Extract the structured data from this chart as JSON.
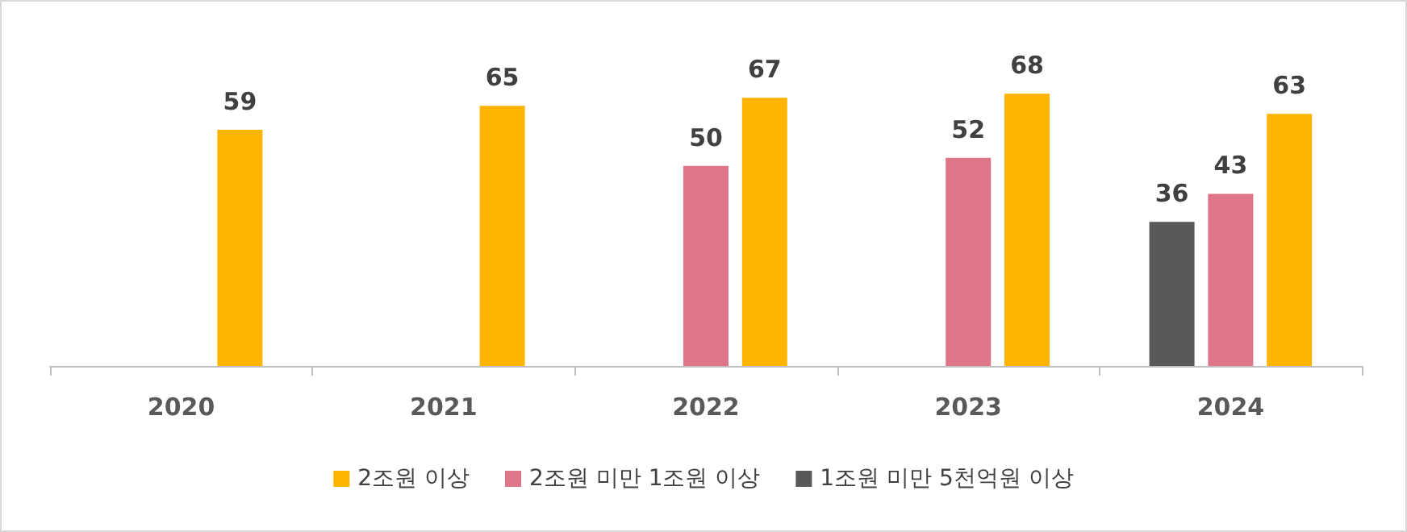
{
  "chart_data": {
    "type": "bar",
    "categories": [
      "2020",
      "2021",
      "2022",
      "2023",
      "2024"
    ],
    "series": [
      {
        "name": "2조원 이상",
        "color": "#ffb400",
        "values": [
          59,
          65,
          67,
          68,
          63
        ]
      },
      {
        "name": "2조원 미만 1조원 이상",
        "color": "#e07489",
        "values": [
          null,
          null,
          50,
          52,
          43
        ]
      },
      {
        "name": "1조원 미만 5천억원 이상",
        "color": "#595959",
        "values": [
          null,
          null,
          null,
          null,
          36
        ]
      }
    ],
    "data_labels": true,
    "legend": "bottom"
  }
}
